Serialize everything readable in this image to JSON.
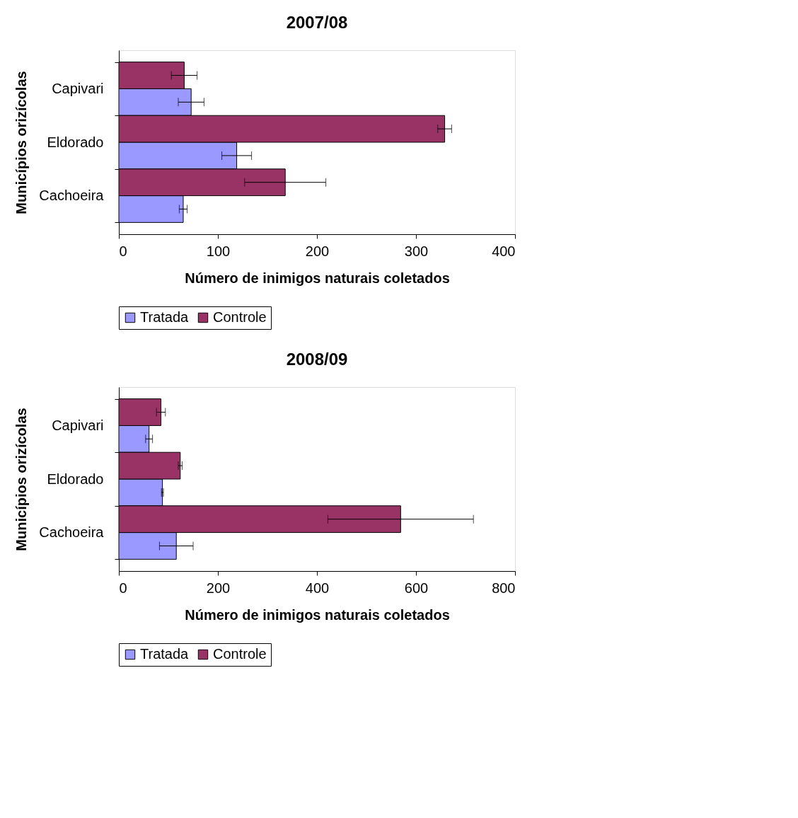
{
  "chart_data": [
    {
      "type": "bar",
      "orientation": "horizontal",
      "title": "2007/08",
      "xlabel": "Número de inimigos naturais coletados",
      "ylabel": "Municípios orizícolas",
      "categories": [
        "Capivari",
        "Eldorado",
        "Cachoeira"
      ],
      "xlim": [
        0,
        400
      ],
      "xticks": [
        0,
        100,
        200,
        300,
        400
      ],
      "grid": false,
      "legend": "bottom",
      "series": [
        {
          "name": "Tratada",
          "color": "#9999ff",
          "values": [
            73,
            119,
            65
          ],
          "errors": [
            13,
            15,
            4
          ]
        },
        {
          "name": "Controle",
          "color": "#993366",
          "values": [
            66,
            329,
            168
          ],
          "errors": [
            13,
            7,
            41
          ]
        }
      ]
    },
    {
      "type": "bar",
      "orientation": "horizontal",
      "title": "2008/09",
      "xlabel": "Número de inimigos naturais coletados",
      "ylabel": "Municípios orizícolas",
      "categories": [
        "Capivari",
        "Eldorado",
        "Cachoeira"
      ],
      "xlim": [
        0,
        800
      ],
      "xticks": [
        0,
        200,
        400,
        600,
        800
      ],
      "grid": false,
      "legend": "bottom",
      "series": [
        {
          "name": "Tratada",
          "color": "#9999ff",
          "values": [
            61,
            88,
            116
          ],
          "errors": [
            7,
            2,
            34
          ]
        },
        {
          "name": "Controle",
          "color": "#993366",
          "values": [
            85,
            124,
            569
          ],
          "errors": [
            9,
            4,
            147
          ]
        }
      ]
    }
  ]
}
